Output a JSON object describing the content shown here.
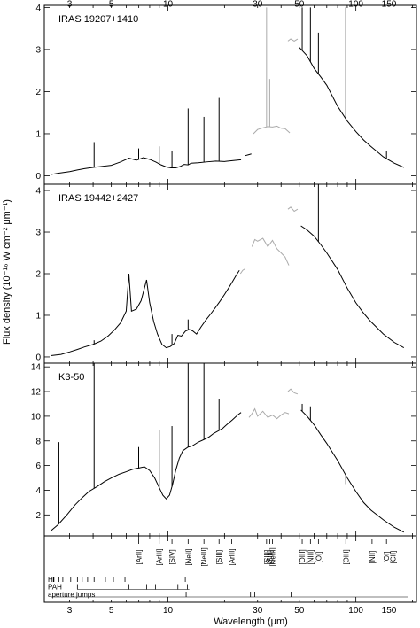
{
  "chart_data": {
    "type": "line",
    "x_scale": "log",
    "xlim": [
      2.2,
      210
    ],
    "xlabel": "Wavelength (μm)",
    "ylabel": "Flux density (10⁻¹⁶ W cm⁻² μm⁻¹)",
    "top_ticks": [
      3,
      5,
      10,
      30,
      50,
      100,
      150
    ],
    "bottom_ticks": [
      3,
      5,
      10,
      30,
      50,
      100,
      150
    ],
    "grid": false,
    "panels": [
      {
        "label": "IRAS 19207+1410",
        "ylim": [
          -0.2,
          4.05
        ],
        "yticks": [
          0,
          1,
          2,
          3,
          4
        ],
        "series": [
          {
            "segment": "sws",
            "color": "#000000",
            "x": [
              2.38,
              2.6,
              3.0,
              3.3,
              3.6,
              4.0,
              4.4,
              5.0,
              5.6,
              6.2,
              6.8,
              7.4,
              8.0,
              8.6,
              9.2,
              9.8,
              10.4,
              11.0,
              11.6,
              12.2,
              12.8,
              13.3
            ],
            "y": [
              0.03,
              0.06,
              0.1,
              0.14,
              0.17,
              0.2,
              0.22,
              0.25,
              0.33,
              0.42,
              0.37,
              0.43,
              0.39,
              0.33,
              0.26,
              0.21,
              0.19,
              0.19,
              0.22,
              0.27,
              0.26,
              0.3
            ]
          },
          {
            "segment": "sws",
            "color": "#000000",
            "x": [
              13.3,
              14.5,
              16,
              18,
              20,
              22,
              24.5
            ],
            "y": [
              0.3,
              0.31,
              0.33,
              0.35,
              0.34,
              0.36,
              0.38
            ]
          },
          {
            "segment": "sws",
            "color": "#000000",
            "x": [
              25.8,
              26.8,
              27.8
            ],
            "y": [
              0.48,
              0.5,
              0.52
            ]
          },
          {
            "segment": "sws-band4",
            "color": "#aaaaaa",
            "x": [
              28.5,
              30,
              32,
              34,
              36,
              38,
              40,
              42,
              44.5
            ],
            "y": [
              1.0,
              1.1,
              1.14,
              1.17,
              1.16,
              1.18,
              1.13,
              1.12,
              1.02
            ]
          },
          {
            "segment": "lws-short",
            "color": "#aaaaaa",
            "x": [
              43.5,
              45,
              47,
              49
            ],
            "y": [
              3.2,
              3.25,
              3.2,
              3.25
            ]
          },
          {
            "segment": "lws",
            "color": "#000000",
            "x": [
              50,
              55,
              60,
              65,
              70,
              80,
              90,
              100,
              110,
              120,
              140,
              160,
              180
            ],
            "y": [
              3.05,
              2.85,
              2.55,
              2.35,
              2.15,
              1.65,
              1.3,
              1.05,
              0.85,
              0.7,
              0.45,
              0.3,
              0.2
            ]
          }
        ],
        "lines": [
          {
            "x": 4.05,
            "peak": 0.8
          },
          {
            "x": 6.99,
            "peak": 0.65
          },
          {
            "x": 8.99,
            "peak": 0.7
          },
          {
            "x": 10.51,
            "peak": 0.6
          },
          {
            "x": 12.81,
            "peak": 1.6
          },
          {
            "x": 15.55,
            "peak": 1.4
          },
          {
            "x": 18.71,
            "peak": 1.85
          },
          {
            "x": 33.48,
            "peak": 4.0
          },
          {
            "x": 34.8,
            "peak": 2.3
          },
          {
            "x": 51.8,
            "peak": 4.0
          },
          {
            "x": 57.3,
            "peak": 4.0
          },
          {
            "x": 63.2,
            "peak": 3.4
          },
          {
            "x": 88.4,
            "peak": 4.0
          },
          {
            "x": 145.5,
            "peak": 0.6
          }
        ]
      },
      {
        "label": "IRAS 19442+2427",
        "ylim": [
          -0.15,
          4.15
        ],
        "yticks": [
          0,
          1,
          2,
          3,
          4
        ],
        "series": [
          {
            "segment": "sws",
            "color": "#000000",
            "x": [
              2.38,
              2.7,
              3.0,
              3.3,
              3.6,
              4.0,
              4.4,
              4.8,
              5.2,
              5.6,
              6.0,
              6.2,
              6.4,
              6.8,
              7.2,
              7.7,
              8.0,
              8.4,
              8.8,
              9.3,
              9.8,
              10.3,
              10.8,
              11.3,
              11.8,
              12.4,
              13.0,
              13.6,
              14.2,
              15.0,
              16.0,
              17.0,
              18.0,
              19.0,
              20.0,
              21.0,
              22.0,
              23.0,
              24.0
            ],
            "y": [
              0.03,
              0.06,
              0.12,
              0.18,
              0.24,
              0.3,
              0.38,
              0.5,
              0.65,
              0.82,
              1.1,
              2.0,
              1.1,
              1.15,
              1.35,
              1.85,
              1.3,
              0.85,
              0.55,
              0.3,
              0.22,
              0.25,
              0.32,
              0.52,
              0.5,
              0.62,
              0.66,
              0.62,
              0.55,
              0.72,
              0.9,
              1.05,
              1.2,
              1.35,
              1.5,
              1.65,
              1.8,
              1.95,
              2.08
            ]
          },
          {
            "segment": "sws-band4",
            "color": "#aaaaaa",
            "x": [
              24.3,
              25.0,
              25.8
            ],
            "y": [
              2.0,
              2.08,
              2.12
            ]
          },
          {
            "segment": "sws-band4",
            "color": "#aaaaaa",
            "x": [
              28.0,
              29.0,
              30,
              32,
              34,
              36,
              38,
              40,
              42,
              44
            ],
            "y": [
              2.65,
              2.82,
              2.78,
              2.85,
              2.65,
              2.8,
              2.6,
              2.5,
              2.4,
              2.2
            ]
          },
          {
            "segment": "lws-short",
            "color": "#aaaaaa",
            "x": [
              43.5,
              45,
              47,
              49
            ],
            "y": [
              3.55,
              3.6,
              3.5,
              3.55
            ]
          },
          {
            "segment": "lws",
            "color": "#000000",
            "x": [
              51,
              55,
              60,
              65,
              70,
              80,
              90,
              100,
              110,
              120,
              140,
              160,
              180
            ],
            "y": [
              3.15,
              3.05,
              2.9,
              2.7,
              2.5,
              2.1,
              1.65,
              1.3,
              1.05,
              0.85,
              0.55,
              0.35,
              0.22
            ]
          }
        ],
        "lines": [
          {
            "x": 4.05,
            "peak": 0.4
          },
          {
            "x": 10.51,
            "peak": 0.55
          },
          {
            "x": 12.81,
            "peak": 0.9
          },
          {
            "x": 63.2,
            "peak": 4.15
          },
          {
            "x": 145.5,
            "peak": 0.5
          }
        ]
      },
      {
        "label": "K3-50",
        "ylim": [
          0.3,
          14.3
        ],
        "yticks": [
          2,
          4,
          6,
          8,
          10,
          12,
          14
        ],
        "series": [
          {
            "segment": "sws",
            "color": "#000000",
            "x": [
              2.38,
              2.6,
              2.9,
              3.2,
              3.5,
              3.8,
              4.2,
              4.6,
              5.0,
              5.5,
              6.0,
              6.5,
              7.0,
              7.5,
              8.0,
              8.5,
              9.0,
              9.4,
              9.8,
              10.2,
              10.6,
              11.0,
              11.5,
              12.0,
              12.8,
              13.5,
              14.5,
              15.5,
              16.5,
              17.5,
              18.5,
              19.5,
              20.5,
              22.0,
              23.5,
              24.5
            ],
            "y": [
              0.7,
              1.2,
              2.0,
              2.8,
              3.4,
              3.9,
              4.3,
              4.7,
              5.0,
              5.3,
              5.5,
              5.7,
              5.8,
              5.9,
              5.6,
              5.0,
              4.2,
              3.6,
              3.3,
              3.6,
              4.5,
              5.6,
              6.6,
              7.2,
              7.5,
              7.6,
              7.9,
              8.1,
              8.3,
              8.6,
              8.8,
              9.0,
              9.3,
              9.7,
              10.1,
              10.3
            ]
          },
          {
            "segment": "sws-band4",
            "color": "#aaaaaa",
            "x": [
              27.0,
              28,
              29,
              30,
              32,
              34,
              36,
              38,
              40,
              42,
              44
            ],
            "y": [
              9.9,
              10.2,
              10.6,
              10.0,
              10.4,
              9.9,
              10.1,
              9.8,
              10.1,
              10.3,
              10.2
            ]
          },
          {
            "segment": "lws-short",
            "color": "#aaaaaa",
            "x": [
              43.5,
              45,
              47,
              49
            ],
            "y": [
              12.0,
              12.2,
              11.9,
              11.8
            ]
          },
          {
            "segment": "lws",
            "color": "#000000",
            "x": [
              51,
              55,
              60,
              65,
              70,
              80,
              90,
              100,
              110,
              120,
              140,
              160,
              180
            ],
            "y": [
              10.5,
              10.0,
              9.3,
              8.5,
              7.8,
              6.4,
              5.0,
              3.9,
              3.0,
              2.4,
              1.6,
              1.0,
              0.6
            ]
          }
        ],
        "lines": [
          {
            "x": 2.63,
            "peak": 7.9
          },
          {
            "x": 4.05,
            "peak": 14.3
          },
          {
            "x": 6.99,
            "peak": 7.5
          },
          {
            "x": 8.99,
            "peak": 8.9
          },
          {
            "x": 10.51,
            "peak": 9.2
          },
          {
            "x": 12.81,
            "peak": 14.3
          },
          {
            "x": 15.55,
            "peak": 14.3
          },
          {
            "x": 18.71,
            "peak": 11.4
          },
          {
            "x": 51.8,
            "peak": 11.0
          },
          {
            "x": 57.3,
            "peak": 10.8
          },
          {
            "x": 88.4,
            "peak": 4.5
          }
        ]
      }
    ],
    "identifications": {
      "forbidden_lines": [
        {
          "label": "[ArII]",
          "x": 6.99
        },
        {
          "label": "[ArIII]",
          "x": 8.99
        },
        {
          "label": "[SIV]",
          "x": 10.51
        },
        {
          "label": "[NeII]",
          "x": 12.81
        },
        {
          "label": "[NeIII]",
          "x": 15.55
        },
        {
          "label": "[SIII]",
          "x": 18.71
        },
        {
          "label": "[ArIII]",
          "x": 21.83
        },
        {
          "label": "[SIII]",
          "x": 33.48
        },
        {
          "label": "[SiII]",
          "x": 34.81
        },
        {
          "label": "[NeIII]",
          "x": 36.01
        },
        {
          "label": "[OIII]",
          "x": 51.8
        },
        {
          "label": "[NIII]",
          "x": 57.3
        },
        {
          "label": "[OI]",
          "x": 63.2
        },
        {
          "label": "[OIII]",
          "x": 88.4
        },
        {
          "label": "[NII]",
          "x": 121.9
        },
        {
          "label": "[OI]",
          "x": 145.5
        },
        {
          "label": "[CII]",
          "x": 157.7
        }
      ],
      "rows": [
        {
          "label": "HI",
          "ticks": [
            2.46,
            2.63,
            2.76,
            2.87,
            3.04,
            3.3,
            3.5,
            3.74,
            4.05,
            4.65,
            5.13,
            5.91,
            7.46,
            12.37
          ]
        },
        {
          "label": "PAH",
          "ticks": [
            3.3,
            6.2,
            7.7,
            8.6,
            11.3,
            12.7
          ],
          "bar": [
            3.3,
            13.0
          ]
        },
        {
          "label": "aperture jumps",
          "ticks": [
            12.5,
            27.5,
            29.0,
            45.2
          ],
          "bar": [
            2.38,
            190
          ]
        }
      ]
    }
  }
}
